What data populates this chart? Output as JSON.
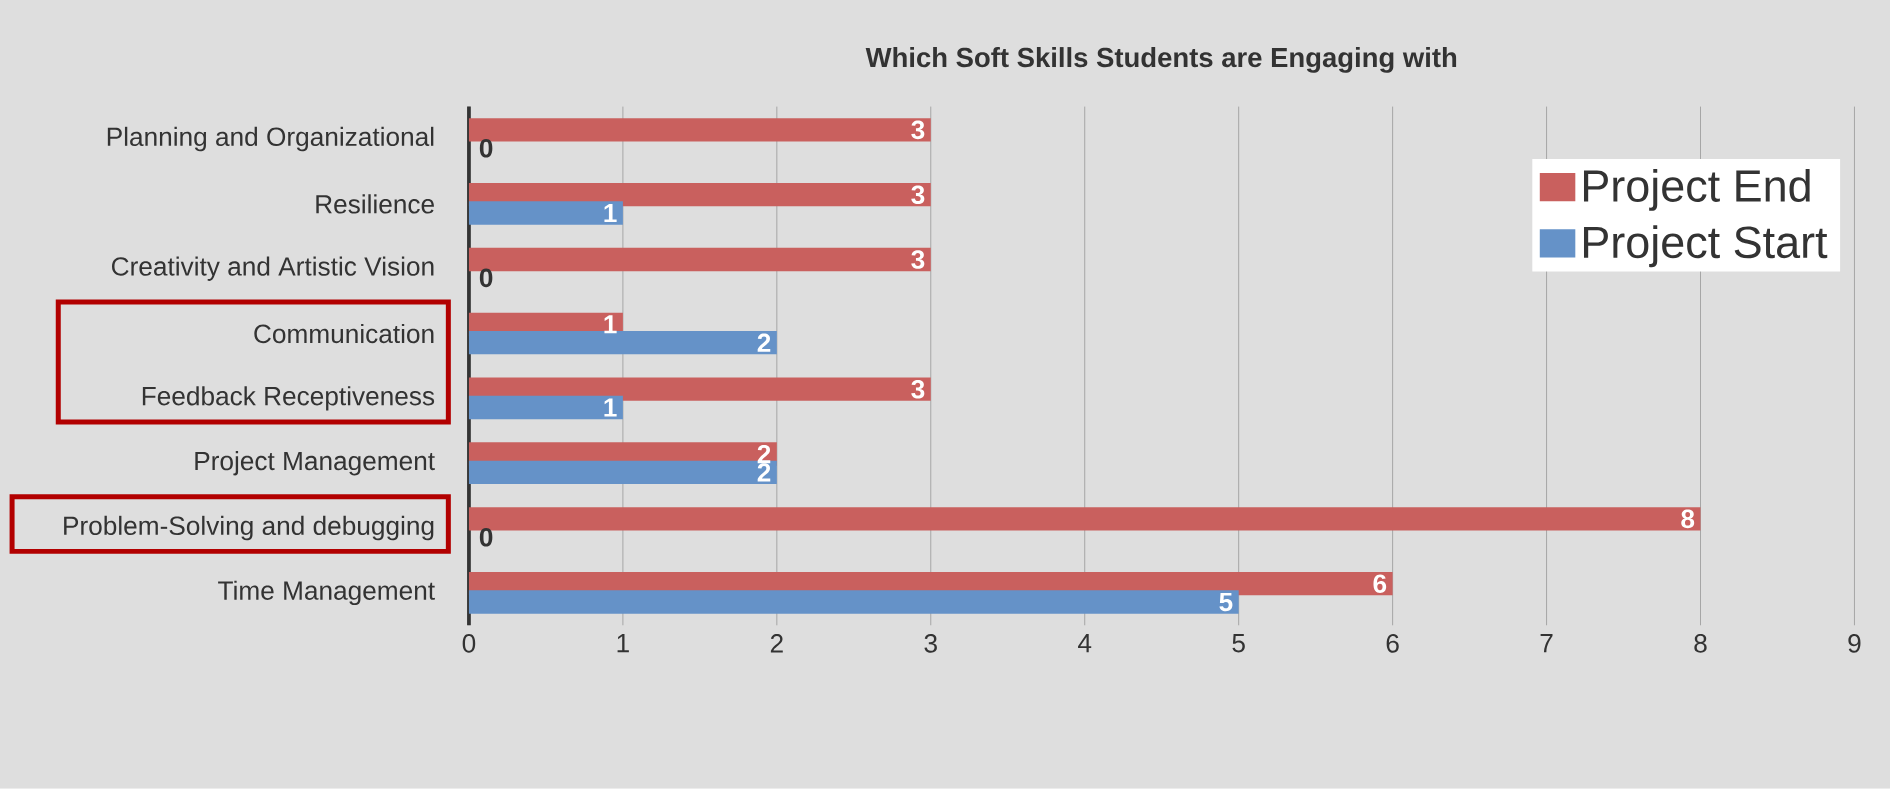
{
  "chart_data": {
    "type": "bar",
    "orientation": "horizontal",
    "title": "Which Soft Skills Students are Engaging with",
    "categories": [
      "Planning and Organizational",
      "Resilience",
      "Creativity and Artistic Vision",
      "Communication",
      "Feedback Receptiveness",
      "Project Management",
      "Problem-Solving and debugging",
      "Time Management"
    ],
    "series": [
      {
        "name": "Project End",
        "color": "#c9605e",
        "values": [
          3,
          3,
          3,
          1,
          3,
          2,
          8,
          6
        ]
      },
      {
        "name": "Project Start",
        "color": "#6592c8",
        "values": [
          0,
          1,
          0,
          2,
          1,
          2,
          0,
          5
        ]
      }
    ],
    "xlim": [
      0,
      9
    ],
    "xticks": [
      0,
      1,
      2,
      3,
      4,
      5,
      6,
      7,
      8,
      9
    ],
    "grid": "x",
    "legend": "top right",
    "data_labels": true
  }
}
